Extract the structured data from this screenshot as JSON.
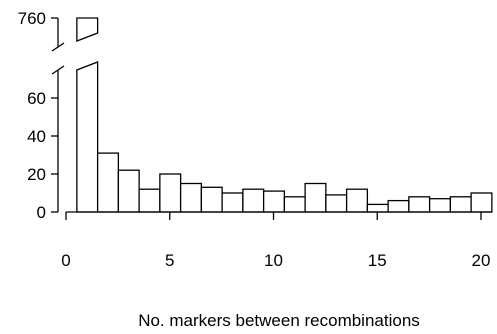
{
  "chart_data": {
    "type": "bar",
    "title": "",
    "xlabel": "No. markers between recombinations",
    "ylabel": "",
    "x": [
      1,
      2,
      3,
      4,
      5,
      6,
      7,
      8,
      9,
      10,
      11,
      12,
      13,
      14,
      15,
      16,
      17,
      18,
      19,
      20
    ],
    "values": [
      760,
      31,
      22,
      12,
      20,
      15,
      13,
      10,
      12,
      11,
      8,
      15,
      9,
      12,
      4,
      6,
      8,
      7,
      8,
      10
    ],
    "xlim": [
      0,
      20.5
    ],
    "ylim_lower": [
      0,
      75
    ],
    "ylim_upper_break_label": 760,
    "y_axis_break": true,
    "xticks": [
      "0",
      "5",
      "10",
      "15",
      "20"
    ],
    "yticks": [
      "0",
      "20",
      "40",
      "60",
      "760"
    ],
    "grid": false,
    "legend": "none"
  }
}
